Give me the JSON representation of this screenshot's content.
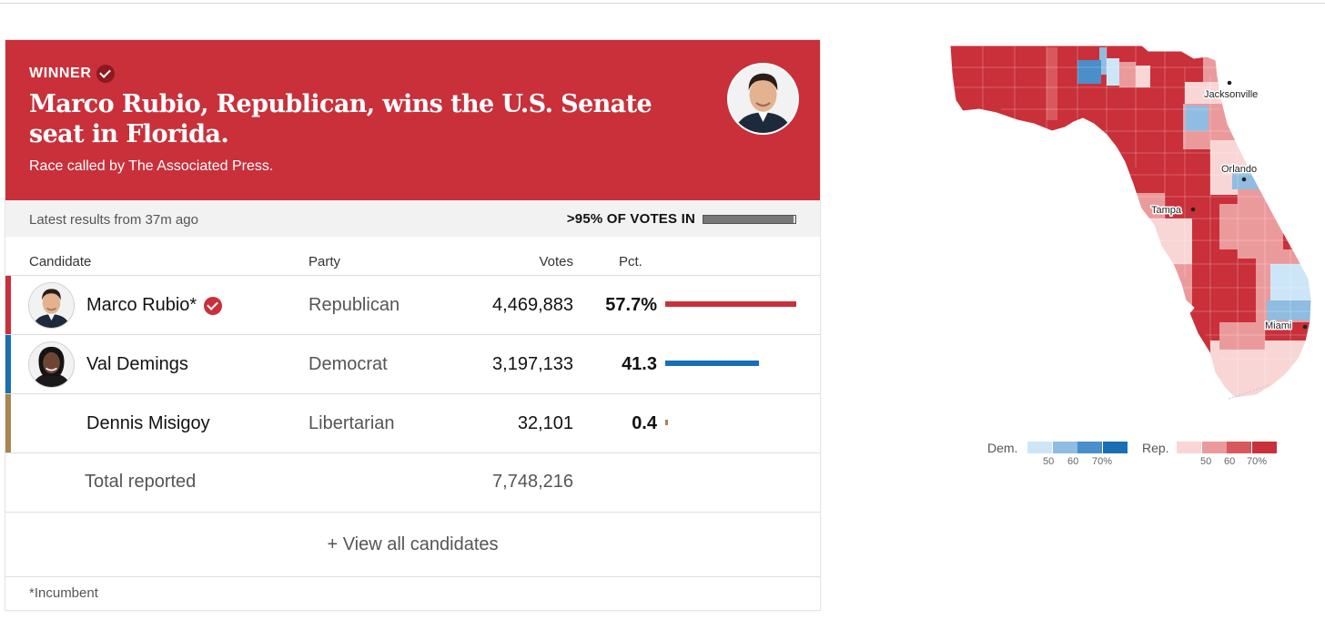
{
  "banner": {
    "tag": "WINNER",
    "headline": "Marco Rubio, Republican, wins the U.S. Senate seat in Florida.",
    "called_by": "Race called by The Associated Press."
  },
  "status": {
    "updated": "Latest results from 37m ago",
    "reporting": ">95% OF VOTES IN",
    "reporting_pct": 0.98
  },
  "columns": {
    "candidate": "Candidate",
    "party": "Party",
    "votes": "Votes",
    "pct": "Pct."
  },
  "candidates": [
    {
      "name": "Marco Rubio*",
      "party": "Republican",
      "votes": "4,469,883",
      "pct": "57.7%",
      "pct_value": 57.7,
      "color": "#c9303a",
      "winner": true
    },
    {
      "name": "Val Demings",
      "party": "Democrat",
      "votes": "3,197,133",
      "pct": "41.3",
      "pct_value": 41.3,
      "color": "#1a6fb4",
      "winner": false
    },
    {
      "name": "Dennis Misigoy",
      "party": "Libertarian",
      "votes": "32,101",
      "pct": "0.4",
      "pct_value": 0.4,
      "color": "#a78650",
      "winner": false
    }
  ],
  "total": {
    "label": "Total reported",
    "votes": "7,748,216"
  },
  "view_all": "+ View all candidates",
  "footnote": "*Incumbent",
  "map": {
    "cities": [
      "Jacksonville",
      "Orlando",
      "Tampa",
      "Miami"
    ]
  },
  "legend": {
    "dem": {
      "label": "Dem.",
      "colors": [
        "#cde6f7",
        "#8fbce0",
        "#4a8fc9",
        "#1a6fb4"
      ],
      "ticks": [
        "50",
        "60",
        "70%"
      ]
    },
    "rep": {
      "label": "Rep.",
      "colors": [
        "#f8d6d5",
        "#eb9a9b",
        "#d9585e",
        "#c9303a"
      ],
      "ticks": [
        "50",
        "60",
        "70%"
      ]
    }
  }
}
